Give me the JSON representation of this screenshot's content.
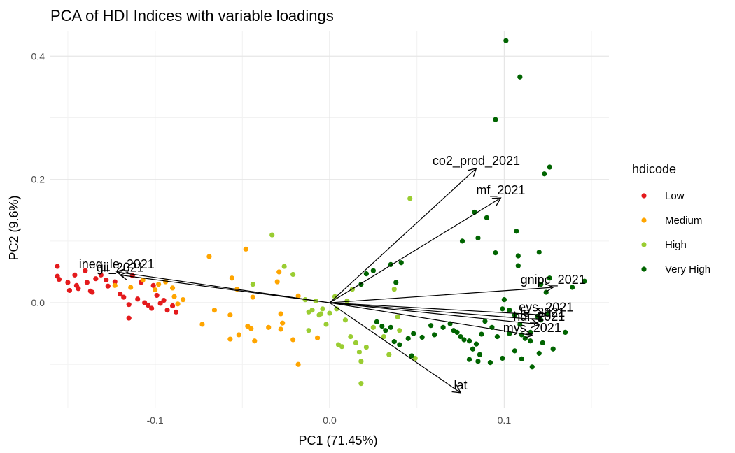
{
  "chart_data": {
    "type": "scatter",
    "title": "PCA of HDI Indices with variable loadings",
    "xlabel": "PC1 (71.45%)",
    "ylabel": "PC2 (9.6%)",
    "xlim": [
      -0.16,
      0.16
    ],
    "ylim": [
      -0.17,
      0.44
    ],
    "x_ticks": [
      -0.1,
      0.0,
      0.1
    ],
    "x_tick_labels": [
      "-0.1",
      "0.0",
      "0.1"
    ],
    "y_ticks": [
      0.0,
      0.2,
      0.4
    ],
    "y_tick_labels": [
      "0.0",
      "0.2",
      "0.4"
    ],
    "grid": true,
    "legend": {
      "title": "hdicode",
      "position": "right",
      "entries": [
        {
          "label": "Low",
          "color": "#e41a1c"
        },
        {
          "label": "Medium",
          "color": "#ffa500"
        },
        {
          "label": "High",
          "color": "#9acd32"
        },
        {
          "label": "Very High",
          "color": "#006400"
        }
      ]
    },
    "series": [
      {
        "name": "Low",
        "color": "#e41a1c",
        "points": [
          [
            -0.156,
            0.059
          ],
          [
            -0.156,
            0.043
          ],
          [
            -0.155,
            0.038
          ],
          [
            -0.15,
            0.033
          ],
          [
            -0.149,
            0.02
          ],
          [
            -0.146,
            0.045
          ],
          [
            -0.145,
            0.028
          ],
          [
            -0.144,
            0.023
          ],
          [
            -0.14,
            0.052
          ],
          [
            -0.139,
            0.033
          ],
          [
            -0.137,
            0.019
          ],
          [
            -0.136,
            0.017
          ],
          [
            -0.134,
            0.039
          ],
          [
            -0.131,
            0.045
          ],
          [
            -0.128,
            0.037
          ],
          [
            -0.127,
            0.027
          ],
          [
            -0.123,
            0.034
          ],
          [
            -0.12,
            0.014
          ],
          [
            -0.118,
            0.009
          ],
          [
            -0.115,
            -0.003
          ],
          [
            -0.115,
            -0.025
          ],
          [
            -0.113,
            0.044
          ],
          [
            -0.11,
            0.006
          ],
          [
            -0.108,
            0.033
          ],
          [
            -0.106,
            0.0
          ],
          [
            -0.104,
            -0.004
          ],
          [
            -0.102,
            -0.009
          ],
          [
            -0.101,
            0.028
          ],
          [
            -0.099,
            0.012
          ],
          [
            -0.097,
            -0.001
          ],
          [
            -0.095,
            0.004
          ],
          [
            -0.093,
            -0.012
          ],
          [
            -0.09,
            -0.005
          ],
          [
            -0.088,
            -0.015
          ]
        ]
      },
      {
        "name": "Medium",
        "color": "#ffa500",
        "points": [
          [
            -0.123,
            0.028
          ],
          [
            -0.114,
            0.025
          ],
          [
            -0.107,
            0.037
          ],
          [
            -0.1,
            0.021
          ],
          [
            -0.098,
            0.03
          ],
          [
            -0.094,
            0.034
          ],
          [
            -0.09,
            0.024
          ],
          [
            -0.089,
            0.01
          ],
          [
            -0.087,
            -0.002
          ],
          [
            -0.084,
            0.005
          ],
          [
            -0.073,
            -0.035
          ],
          [
            -0.069,
            0.075
          ],
          [
            -0.066,
            -0.012
          ],
          [
            -0.057,
            -0.02
          ],
          [
            -0.056,
            0.04
          ],
          [
            -0.057,
            -0.059
          ],
          [
            -0.052,
            -0.052
          ],
          [
            -0.053,
            0.022
          ],
          [
            -0.048,
            0.087
          ],
          [
            -0.047,
            -0.038
          ],
          [
            -0.045,
            -0.042
          ],
          [
            -0.044,
            0.009
          ],
          [
            -0.043,
            -0.062
          ],
          [
            -0.035,
            -0.04
          ],
          [
            -0.03,
            0.034
          ],
          [
            -0.029,
            0.05
          ],
          [
            -0.028,
            -0.018
          ],
          [
            -0.028,
            -0.043
          ],
          [
            -0.027,
            -0.033
          ],
          [
            -0.021,
            -0.06
          ],
          [
            -0.018,
            0.011
          ],
          [
            -0.018,
            -0.1
          ],
          [
            -0.007,
            -0.057
          ]
        ]
      },
      {
        "name": "High",
        "color": "#9acd32",
        "points": [
          [
            -0.044,
            0.03
          ],
          [
            -0.033,
            0.11
          ],
          [
            -0.026,
            0.059
          ],
          [
            -0.021,
            0.046
          ],
          [
            -0.014,
            0.005
          ],
          [
            -0.012,
            -0.015
          ],
          [
            -0.012,
            -0.045
          ],
          [
            -0.01,
            -0.012
          ],
          [
            -0.008,
            0.003
          ],
          [
            -0.006,
            -0.02
          ],
          [
            -0.005,
            -0.018
          ],
          [
            -0.004,
            -0.01
          ],
          [
            -0.002,
            -0.035
          ],
          [
            0.0,
            -0.017
          ],
          [
            0.003,
            0.01
          ],
          [
            0.004,
            -0.01
          ],
          [
            0.005,
            -0.068
          ],
          [
            0.007,
            -0.071
          ],
          [
            0.009,
            -0.028
          ],
          [
            0.01,
            0.003
          ],
          [
            0.012,
            -0.055
          ],
          [
            0.013,
            0.022
          ],
          [
            0.015,
            -0.065
          ],
          [
            0.017,
            -0.08
          ],
          [
            0.018,
            -0.095
          ],
          [
            0.018,
            -0.131
          ],
          [
            0.021,
            -0.072
          ],
          [
            0.025,
            -0.04
          ],
          [
            0.031,
            -0.055
          ],
          [
            0.034,
            -0.084
          ],
          [
            0.037,
            0.022
          ],
          [
            0.039,
            -0.023
          ],
          [
            0.04,
            -0.045
          ],
          [
            0.046,
            0.169
          ],
          [
            0.049,
            -0.09
          ]
        ]
      },
      {
        "name": "Very High",
        "color": "#006400",
        "points": [
          [
            0.101,
            0.425
          ],
          [
            0.109,
            0.366
          ],
          [
            0.095,
            0.297
          ],
          [
            0.126,
            0.22
          ],
          [
            0.123,
            0.209
          ],
          [
            0.083,
            0.147
          ],
          [
            0.09,
            0.138
          ],
          [
            0.076,
            0.1
          ],
          [
            0.085,
            0.105
          ],
          [
            0.107,
            0.116
          ],
          [
            0.108,
            0.076
          ],
          [
            0.095,
            0.081
          ],
          [
            0.108,
            0.06
          ],
          [
            0.025,
            0.052
          ],
          [
            0.021,
            0.047
          ],
          [
            0.035,
            0.062
          ],
          [
            0.041,
            0.065
          ],
          [
            0.038,
            0.033
          ],
          [
            0.018,
            0.03
          ],
          [
            0.12,
            0.082
          ],
          [
            0.126,
            0.04
          ],
          [
            0.146,
            0.035
          ],
          [
            0.121,
            0.03
          ],
          [
            0.124,
            0.017
          ],
          [
            0.139,
            0.025
          ],
          [
            0.119,
            -0.022
          ],
          [
            0.121,
            -0.028
          ],
          [
            0.125,
            -0.018
          ],
          [
            0.135,
            -0.048
          ],
          [
            0.099,
            -0.01
          ],
          [
            0.1,
            0.005
          ],
          [
            0.103,
            -0.012
          ],
          [
            0.106,
            -0.02
          ],
          [
            0.109,
            -0.035
          ],
          [
            0.112,
            -0.058
          ],
          [
            0.115,
            -0.048
          ],
          [
            0.103,
            -0.05
          ],
          [
            0.096,
            -0.055
          ],
          [
            0.093,
            -0.04
          ],
          [
            0.089,
            -0.03
          ],
          [
            0.087,
            -0.051
          ],
          [
            0.084,
            -0.067
          ],
          [
            0.08,
            -0.062
          ],
          [
            0.077,
            -0.06
          ],
          [
            0.075,
            -0.055
          ],
          [
            0.073,
            -0.048
          ],
          [
            0.071,
            -0.045
          ],
          [
            0.065,
            -0.04
          ],
          [
            0.06,
            -0.052
          ],
          [
            0.053,
            -0.056
          ],
          [
            0.048,
            -0.05
          ],
          [
            0.045,
            -0.058
          ],
          [
            0.058,
            -0.037
          ],
          [
            0.069,
            -0.034
          ],
          [
            0.082,
            -0.075
          ],
          [
            0.086,
            -0.084
          ],
          [
            0.08,
            -0.092
          ],
          [
            0.085,
            -0.095
          ],
          [
            0.092,
            -0.097
          ],
          [
            0.099,
            -0.09
          ],
          [
            0.106,
            -0.078
          ],
          [
            0.11,
            -0.091
          ],
          [
            0.116,
            -0.104
          ],
          [
            0.12,
            -0.082
          ],
          [
            0.11,
            -0.052
          ],
          [
            0.115,
            -0.062
          ],
          [
            0.122,
            -0.065
          ],
          [
            0.128,
            -0.075
          ],
          [
            0.037,
            -0.063
          ],
          [
            0.04,
            -0.068
          ],
          [
            0.03,
            -0.038
          ],
          [
            0.027,
            -0.031
          ],
          [
            0.032,
            -0.045
          ],
          [
            0.047,
            -0.086
          ],
          [
            0.035,
            -0.04
          ]
        ]
      }
    ],
    "loadings": [
      {
        "label": "ineq_le_2021",
        "x": -0.122,
        "y": 0.05
      },
      {
        "label": "gii_2021",
        "x": -0.12,
        "y": 0.045
      },
      {
        "label": "co2_prod_2021",
        "x": 0.084,
        "y": 0.218
      },
      {
        "label": "mf_2021",
        "x": 0.098,
        "y": 0.17
      },
      {
        "label": "gnipc_2021",
        "x": 0.128,
        "y": 0.025
      },
      {
        "label": "eys_2021",
        "x": 0.124,
        "y": -0.02
      },
      {
        "label": "le_2021",
        "x": 0.122,
        "y": -0.028
      },
      {
        "label": "hdi_2021",
        "x": 0.12,
        "y": -0.035
      },
      {
        "label": "mys_2021",
        "x": 0.116,
        "y": -0.053
      },
      {
        "label": "lat",
        "x": 0.075,
        "y": -0.146
      }
    ]
  }
}
